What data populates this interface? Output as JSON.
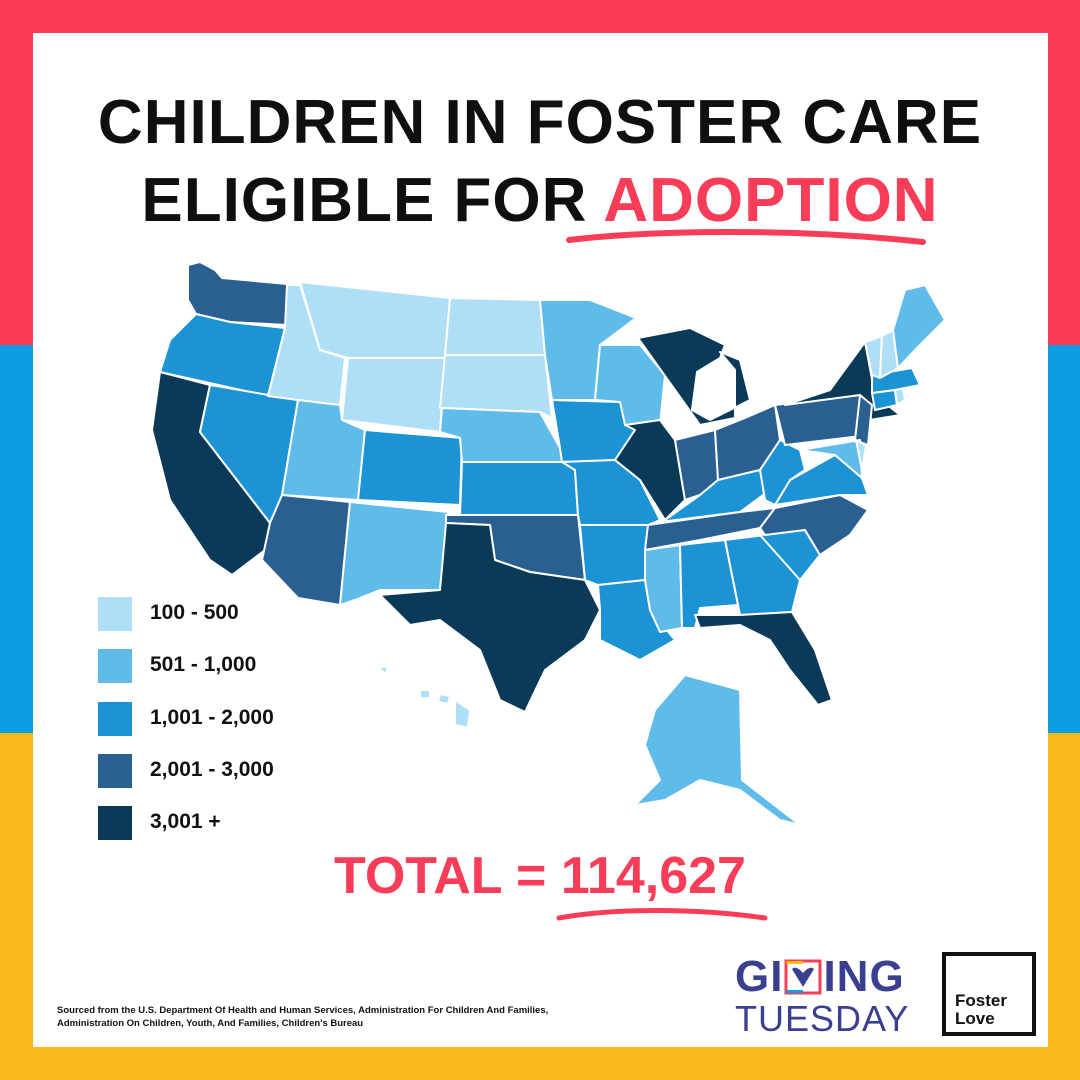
{
  "title": {
    "line1": "CHILDREN IN FOSTER CARE",
    "line2_prefix": "ELIGIBLE FOR ",
    "line2_accent": "ADOPTION"
  },
  "legend": [
    {
      "label": "100 - 500",
      "color": "#aedff6"
    },
    {
      "label": "501 - 1,000",
      "color": "#5fbcea"
    },
    {
      "label": "1,001 - 2,000",
      "color": "#1b93d5"
    },
    {
      "label": "2,001 - 3,000",
      "color": "#2a5f92"
    },
    {
      "label": "3,001 +",
      "color": "#0a3a57"
    }
  ],
  "total": {
    "prefix": "TOTAL = ",
    "value": "114,627"
  },
  "source": "Sourced from the U.S. Department Of Health and Human Services, Administration For Children And Families, Administration On Children, Youth, And Families, Children's Bureau",
  "logos": {
    "giving_tuesday_line1_a": "GI",
    "giving_tuesday_line1_b": "ING",
    "giving_tuesday_line2": "TUESDAY",
    "foster_love_line1": "Foster",
    "foster_love_line2": "Love"
  },
  "colors": {
    "brand_red": "#f93c57",
    "brand_blue": "#0c9ee3",
    "brand_yellow": "#fbb81b",
    "giving_tuesday_navy": "#3b3f91"
  },
  "map": {
    "states": [
      {
        "name": "WA",
        "tier": 4
      },
      {
        "name": "OR",
        "tier": 3
      },
      {
        "name": "CA",
        "tier": 5
      },
      {
        "name": "NV",
        "tier": 3
      },
      {
        "name": "ID",
        "tier": 1
      },
      {
        "name": "MT",
        "tier": 1
      },
      {
        "name": "WY",
        "tier": 1
      },
      {
        "name": "UT",
        "tier": 2
      },
      {
        "name": "AZ",
        "tier": 4
      },
      {
        "name": "CO",
        "tier": 3
      },
      {
        "name": "NM",
        "tier": 2
      },
      {
        "name": "ND",
        "tier": 1
      },
      {
        "name": "SD",
        "tier": 1
      },
      {
        "name": "NE",
        "tier": 2
      },
      {
        "name": "KS",
        "tier": 3
      },
      {
        "name": "OK",
        "tier": 4
      },
      {
        "name": "TX",
        "tier": 5
      },
      {
        "name": "MN",
        "tier": 2
      },
      {
        "name": "IA",
        "tier": 3
      },
      {
        "name": "MO",
        "tier": 3
      },
      {
        "name": "AR",
        "tier": 3
      },
      {
        "name": "LA",
        "tier": 3
      },
      {
        "name": "WI",
        "tier": 2
      },
      {
        "name": "IL",
        "tier": 5
      },
      {
        "name": "MI",
        "tier": 5
      },
      {
        "name": "IN",
        "tier": 4
      },
      {
        "name": "OH",
        "tier": 4
      },
      {
        "name": "KY",
        "tier": 3
      },
      {
        "name": "TN",
        "tier": 4
      },
      {
        "name": "MS",
        "tier": 2
      },
      {
        "name": "AL",
        "tier": 3
      },
      {
        "name": "GA",
        "tier": 3
      },
      {
        "name": "FL",
        "tier": 5
      },
      {
        "name": "SC",
        "tier": 3
      },
      {
        "name": "NC",
        "tier": 4
      },
      {
        "name": "VA",
        "tier": 3
      },
      {
        "name": "WV",
        "tier": 3
      },
      {
        "name": "PA",
        "tier": 4
      },
      {
        "name": "NY",
        "tier": 5
      },
      {
        "name": "NJ",
        "tier": 4
      },
      {
        "name": "MD",
        "tier": 2
      },
      {
        "name": "DE",
        "tier": 1
      },
      {
        "name": "CT",
        "tier": 3
      },
      {
        "name": "RI",
        "tier": 1
      },
      {
        "name": "MA",
        "tier": 3
      },
      {
        "name": "VT",
        "tier": 1
      },
      {
        "name": "NH",
        "tier": 1
      },
      {
        "name": "ME",
        "tier": 2
      },
      {
        "name": "AK",
        "tier": 2
      },
      {
        "name": "HI",
        "tier": 1
      }
    ]
  }
}
